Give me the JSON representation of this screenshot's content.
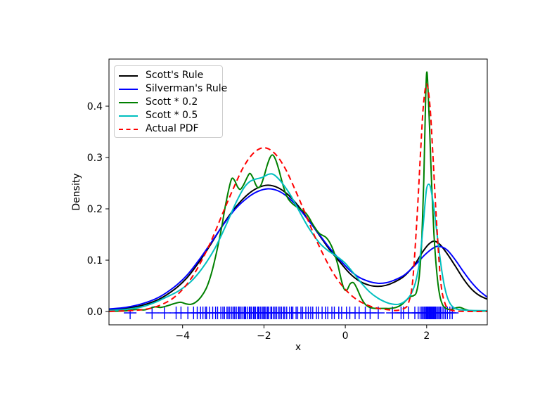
{
  "figure": {
    "background": "#ffffff"
  },
  "chart_data": {
    "type": "line",
    "title": "",
    "xlabel": "x",
    "ylabel": "Density",
    "xlim": [
      -5.81,
      3.49
    ],
    "ylim": [
      -0.026,
      0.4918
    ],
    "grid": false,
    "xticks": [
      -4,
      -2,
      0,
      2
    ],
    "xtick_labels": [
      "−4",
      "−2",
      "0",
      "2"
    ],
    "yticks": [
      0.0,
      0.1,
      0.2,
      0.3,
      0.4
    ],
    "ytick_labels": [
      "0.0",
      "0.1",
      "0.2",
      "0.3",
      "0.4"
    ],
    "legend": {
      "position": "upper left",
      "border_color": "#cccccc"
    },
    "series": [
      {
        "name": "Scott's Rule",
        "color": "#000000",
        "style": "solid",
        "points": [
          [
            -5.8,
            0.003
          ],
          [
            -5.4,
            0.006
          ],
          [
            -5.0,
            0.012
          ],
          [
            -4.6,
            0.023
          ],
          [
            -4.2,
            0.043
          ],
          [
            -3.9,
            0.065
          ],
          [
            -3.6,
            0.096
          ],
          [
            -3.3,
            0.132
          ],
          [
            -3.0,
            0.17
          ],
          [
            -2.7,
            0.203
          ],
          [
            -2.4,
            0.228
          ],
          [
            -2.15,
            0.241
          ],
          [
            -1.9,
            0.246
          ],
          [
            -1.65,
            0.241
          ],
          [
            -1.4,
            0.227
          ],
          [
            -1.15,
            0.205
          ],
          [
            -0.9,
            0.178
          ],
          [
            -0.65,
            0.15
          ],
          [
            -0.4,
            0.122
          ],
          [
            -0.15,
            0.098
          ],
          [
            0.1,
            0.075
          ],
          [
            0.35,
            0.059
          ],
          [
            0.6,
            0.051
          ],
          [
            0.8,
            0.049
          ],
          [
            1.0,
            0.051
          ],
          [
            1.2,
            0.057
          ],
          [
            1.45,
            0.069
          ],
          [
            1.7,
            0.091
          ],
          [
            1.9,
            0.116
          ],
          [
            2.05,
            0.131
          ],
          [
            2.18,
            0.137
          ],
          [
            2.32,
            0.131
          ],
          [
            2.5,
            0.113
          ],
          [
            2.7,
            0.089
          ],
          [
            2.9,
            0.064
          ],
          [
            3.1,
            0.044
          ],
          [
            3.3,
            0.031
          ],
          [
            3.49,
            0.024
          ]
        ]
      },
      {
        "name": "Silverman's Rule",
        "color": "#0000ff",
        "style": "solid",
        "points": [
          [
            -5.8,
            0.005
          ],
          [
            -5.4,
            0.008
          ],
          [
            -5.0,
            0.015
          ],
          [
            -4.6,
            0.027
          ],
          [
            -4.2,
            0.048
          ],
          [
            -3.9,
            0.07
          ],
          [
            -3.6,
            0.1
          ],
          [
            -3.3,
            0.134
          ],
          [
            -3.0,
            0.169
          ],
          [
            -2.7,
            0.2
          ],
          [
            -2.4,
            0.222
          ],
          [
            -2.15,
            0.234
          ],
          [
            -1.9,
            0.239
          ],
          [
            -1.65,
            0.235
          ],
          [
            -1.4,
            0.222
          ],
          [
            -1.15,
            0.202
          ],
          [
            -0.9,
            0.177
          ],
          [
            -0.65,
            0.151
          ],
          [
            -0.4,
            0.125
          ],
          [
            -0.15,
            0.102
          ],
          [
            0.1,
            0.081
          ],
          [
            0.35,
            0.066
          ],
          [
            0.6,
            0.058
          ],
          [
            0.8,
            0.055
          ],
          [
            1.0,
            0.056
          ],
          [
            1.2,
            0.061
          ],
          [
            1.45,
            0.071
          ],
          [
            1.7,
            0.089
          ],
          [
            1.95,
            0.11
          ],
          [
            2.15,
            0.123
          ],
          [
            2.3,
            0.127
          ],
          [
            2.5,
            0.12
          ],
          [
            2.7,
            0.101
          ],
          [
            2.9,
            0.078
          ],
          [
            3.1,
            0.057
          ],
          [
            3.3,
            0.04
          ],
          [
            3.49,
            0.028
          ]
        ]
      },
      {
        "name": "Scott * 0.2",
        "color": "#008000",
        "style": "solid",
        "points": [
          [
            -5.8,
            0.0005
          ],
          [
            -5.45,
            0.001
          ],
          [
            -5.25,
            0.003
          ],
          [
            -5.1,
            0.004
          ],
          [
            -4.95,
            0.003
          ],
          [
            -4.8,
            0.006
          ],
          [
            -4.68,
            0.009
          ],
          [
            -4.55,
            0.008
          ],
          [
            -4.42,
            0.01
          ],
          [
            -4.3,
            0.013
          ],
          [
            -4.18,
            0.016
          ],
          [
            -4.05,
            0.018
          ],
          [
            -3.92,
            0.015
          ],
          [
            -3.8,
            0.014
          ],
          [
            -3.68,
            0.018
          ],
          [
            -3.55,
            0.028
          ],
          [
            -3.42,
            0.045
          ],
          [
            -3.3,
            0.072
          ],
          [
            -3.18,
            0.11
          ],
          [
            -3.05,
            0.16
          ],
          [
            -2.95,
            0.205
          ],
          [
            -2.86,
            0.24
          ],
          [
            -2.79,
            0.259
          ],
          [
            -2.72,
            0.255
          ],
          [
            -2.65,
            0.243
          ],
          [
            -2.58,
            0.238
          ],
          [
            -2.5,
            0.247
          ],
          [
            -2.42,
            0.26
          ],
          [
            -2.35,
            0.269
          ],
          [
            -2.28,
            0.262
          ],
          [
            -2.2,
            0.247
          ],
          [
            -2.14,
            0.241
          ],
          [
            -2.07,
            0.247
          ],
          [
            -2.0,
            0.263
          ],
          [
            -1.92,
            0.285
          ],
          [
            -1.85,
            0.3
          ],
          [
            -1.79,
            0.305
          ],
          [
            -1.72,
            0.297
          ],
          [
            -1.64,
            0.278
          ],
          [
            -1.56,
            0.254
          ],
          [
            -1.48,
            0.233
          ],
          [
            -1.4,
            0.219
          ],
          [
            -1.3,
            0.21
          ],
          [
            -1.2,
            0.204
          ],
          [
            -1.1,
            0.199
          ],
          [
            -1.0,
            0.194
          ],
          [
            -0.9,
            0.184
          ],
          [
            -0.8,
            0.17
          ],
          [
            -0.7,
            0.158
          ],
          [
            -0.62,
            0.151
          ],
          [
            -0.55,
            0.148
          ],
          [
            -0.47,
            0.144
          ],
          [
            -0.38,
            0.134
          ],
          [
            -0.28,
            0.116
          ],
          [
            -0.18,
            0.09
          ],
          [
            -0.1,
            0.062
          ],
          [
            -0.03,
            0.044
          ],
          [
            0.04,
            0.042
          ],
          [
            0.12,
            0.054
          ],
          [
            0.2,
            0.056
          ],
          [
            0.28,
            0.046
          ],
          [
            0.38,
            0.028
          ],
          [
            0.48,
            0.015
          ],
          [
            0.6,
            0.008
          ],
          [
            0.75,
            0.006
          ],
          [
            0.95,
            0.006
          ],
          [
            1.1,
            0.006
          ],
          [
            1.25,
            0.008
          ],
          [
            1.38,
            0.013
          ],
          [
            1.5,
            0.022
          ],
          [
            1.6,
            0.029
          ],
          [
            1.68,
            0.031
          ],
          [
            1.75,
            0.038
          ],
          [
            1.82,
            0.07
          ],
          [
            1.88,
            0.14
          ],
          [
            1.93,
            0.26
          ],
          [
            1.97,
            0.4
          ],
          [
            2.0,
            0.465
          ],
          [
            2.03,
            0.44
          ],
          [
            2.07,
            0.36
          ],
          [
            2.12,
            0.255
          ],
          [
            2.18,
            0.15
          ],
          [
            2.25,
            0.075
          ],
          [
            2.32,
            0.032
          ],
          [
            2.4,
            0.012
          ],
          [
            2.5,
            0.005
          ],
          [
            2.62,
            0.004
          ],
          [
            2.72,
            0.007
          ],
          [
            2.82,
            0.008
          ],
          [
            2.92,
            0.005
          ],
          [
            3.05,
            0.002
          ],
          [
            3.25,
            0.001
          ],
          [
            3.49,
            0.0008
          ]
        ]
      },
      {
        "name": "Scott * 0.5",
        "color": "#00bfbf",
        "style": "solid",
        "points": [
          [
            -5.8,
            0.002
          ],
          [
            -5.4,
            0.004
          ],
          [
            -5.0,
            0.009
          ],
          [
            -4.7,
            0.017
          ],
          [
            -4.4,
            0.028
          ],
          [
            -4.1,
            0.04
          ],
          [
            -3.8,
            0.058
          ],
          [
            -3.5,
            0.086
          ],
          [
            -3.2,
            0.124
          ],
          [
            -2.95,
            0.165
          ],
          [
            -2.7,
            0.21
          ],
          [
            -2.5,
            0.24
          ],
          [
            -2.35,
            0.253
          ],
          [
            -2.2,
            0.258
          ],
          [
            -2.05,
            0.261
          ],
          [
            -1.9,
            0.267
          ],
          [
            -1.8,
            0.268
          ],
          [
            -1.7,
            0.263
          ],
          [
            -1.55,
            0.25
          ],
          [
            -1.35,
            0.227
          ],
          [
            -1.15,
            0.198
          ],
          [
            -0.9,
            0.163
          ],
          [
            -0.65,
            0.135
          ],
          [
            -0.45,
            0.12
          ],
          [
            -0.3,
            0.112
          ],
          [
            -0.15,
            0.104
          ],
          [
            0.0,
            0.094
          ],
          [
            0.2,
            0.075
          ],
          [
            0.4,
            0.055
          ],
          [
            0.6,
            0.038
          ],
          [
            0.8,
            0.026
          ],
          [
            1.0,
            0.018
          ],
          [
            1.15,
            0.0145
          ],
          [
            1.3,
            0.014
          ],
          [
            1.45,
            0.019
          ],
          [
            1.6,
            0.032
          ],
          [
            1.72,
            0.055
          ],
          [
            1.82,
            0.095
          ],
          [
            1.9,
            0.155
          ],
          [
            1.96,
            0.21
          ],
          [
            2.0,
            0.24
          ],
          [
            2.05,
            0.248
          ],
          [
            2.1,
            0.24
          ],
          [
            2.18,
            0.2
          ],
          [
            2.28,
            0.135
          ],
          [
            2.38,
            0.075
          ],
          [
            2.48,
            0.035
          ],
          [
            2.58,
            0.015
          ],
          [
            2.7,
            0.006
          ],
          [
            2.85,
            0.003
          ],
          [
            3.1,
            0.002
          ],
          [
            3.49,
            0.0015
          ]
        ]
      },
      {
        "name": "Actual PDF",
        "color": "#ff0000",
        "style": "dashed",
        "points": [
          [
            -5.8,
            0.0002
          ],
          [
            -5.5,
            0.001
          ],
          [
            -5.25,
            0.002
          ],
          [
            -5.0,
            0.0035
          ],
          [
            -4.75,
            0.007
          ],
          [
            -4.5,
            0.014
          ],
          [
            -4.25,
            0.025
          ],
          [
            -4.0,
            0.043
          ],
          [
            -3.75,
            0.069
          ],
          [
            -3.5,
            0.104
          ],
          [
            -3.25,
            0.146
          ],
          [
            -3.0,
            0.194
          ],
          [
            -2.75,
            0.24
          ],
          [
            -2.5,
            0.282
          ],
          [
            -2.25,
            0.309
          ],
          [
            -2.0,
            0.319
          ],
          [
            -1.75,
            0.309
          ],
          [
            -1.5,
            0.282
          ],
          [
            -1.25,
            0.24
          ],
          [
            -1.0,
            0.194
          ],
          [
            -0.75,
            0.146
          ],
          [
            -0.5,
            0.104
          ],
          [
            -0.25,
            0.069
          ],
          [
            0.0,
            0.043
          ],
          [
            0.25,
            0.025
          ],
          [
            0.5,
            0.014
          ],
          [
            0.75,
            0.007
          ],
          [
            1.0,
            0.004
          ],
          [
            1.25,
            0.002
          ],
          [
            1.45,
            0.006
          ],
          [
            1.55,
            0.016
          ],
          [
            1.65,
            0.055
          ],
          [
            1.75,
            0.165
          ],
          [
            1.85,
            0.31
          ],
          [
            1.92,
            0.402
          ],
          [
            2.0,
            0.443
          ],
          [
            2.08,
            0.402
          ],
          [
            2.15,
            0.31
          ],
          [
            2.25,
            0.165
          ],
          [
            2.35,
            0.055
          ],
          [
            2.45,
            0.016
          ],
          [
            2.55,
            0.005
          ],
          [
            2.7,
            0.001
          ],
          [
            3.0,
            0.0002
          ],
          [
            3.49,
            0.0001
          ]
        ]
      }
    ],
    "rug": {
      "color": "#0000ff",
      "marker": "plus",
      "x": [
        -5.29,
        -4.75,
        -4.45,
        -4.16,
        -4.04,
        -3.87,
        -3.73,
        -3.64,
        -3.56,
        -3.5,
        -3.44,
        -3.41,
        -3.34,
        -3.26,
        -3.19,
        -3.14,
        -3.06,
        -3.01,
        -2.97,
        -2.91,
        -2.88,
        -2.84,
        -2.79,
        -2.75,
        -2.72,
        -2.68,
        -2.63,
        -2.61,
        -2.58,
        -2.54,
        -2.49,
        -2.47,
        -2.45,
        -2.41,
        -2.36,
        -2.34,
        -2.31,
        -2.26,
        -2.24,
        -2.21,
        -2.16,
        -2.14,
        -2.12,
        -2.08,
        -2.04,
        -2.01,
        -1.98,
        -1.95,
        -1.91,
        -1.88,
        -1.83,
        -1.81,
        -1.77,
        -1.73,
        -1.69,
        -1.65,
        -1.61,
        -1.57,
        -1.52,
        -1.49,
        -1.44,
        -1.37,
        -1.32,
        -1.29,
        -1.21,
        -1.17,
        -1.09,
        -1.05,
        -0.97,
        -0.91,
        -0.85,
        -0.8,
        -0.71,
        -0.66,
        -0.57,
        -0.49,
        -0.43,
        -0.33,
        -0.27,
        -0.16,
        -0.09,
        0.03,
        0.11,
        0.24,
        0.34,
        0.49,
        0.61,
        0.81,
        1.16,
        1.37,
        1.43,
        1.55,
        1.71,
        1.79,
        1.84,
        1.88,
        1.91,
        1.94,
        1.97,
        1.99,
        2.0,
        2.02,
        2.04,
        2.06,
        2.08,
        2.1,
        2.12,
        2.14,
        2.16,
        2.18,
        2.2,
        2.22,
        2.25,
        2.28,
        2.31,
        2.34,
        2.38,
        2.42,
        2.46,
        2.51,
        2.57,
        2.63
      ]
    }
  }
}
